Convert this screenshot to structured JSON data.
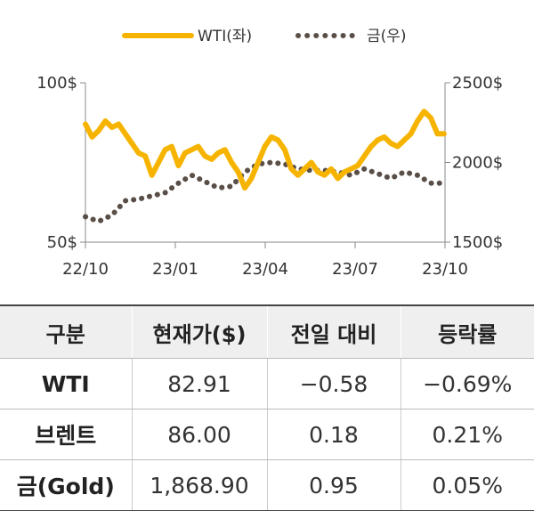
{
  "chart_data": {
    "type": "line",
    "title": "",
    "legend_position": "top",
    "x_ticks": [
      "22/10",
      "23/01",
      "23/04",
      "23/07",
      "23/10"
    ],
    "y_left": {
      "ticks": [
        "100$",
        "50$"
      ],
      "ticks_values": [
        100,
        50
      ],
      "range": [
        50,
        100
      ]
    },
    "y_right": {
      "ticks": [
        "2500$",
        "2000$",
        "1500$"
      ],
      "ticks_values": [
        2500,
        2000,
        1500
      ],
      "range": [
        1500,
        2500
      ]
    },
    "grid": false,
    "series": [
      {
        "name": "WTI(좌)",
        "axis": "left",
        "style": "solid",
        "color": "#F6B400",
        "x": [
          "2022-10-01",
          "2022-10-08",
          "2022-10-15",
          "2022-10-22",
          "2022-10-29",
          "2022-11-05",
          "2022-11-12",
          "2022-11-19",
          "2022-11-26",
          "2022-12-03",
          "2022-12-10",
          "2022-12-17",
          "2022-12-24",
          "2022-12-31",
          "2023-01-07",
          "2023-01-14",
          "2023-01-21",
          "2023-01-28",
          "2023-02-04",
          "2023-02-11",
          "2023-02-18",
          "2023-02-25",
          "2023-03-04",
          "2023-03-11",
          "2023-03-18",
          "2023-03-25",
          "2023-04-01",
          "2023-04-08",
          "2023-04-15",
          "2023-04-22",
          "2023-04-29",
          "2023-05-06",
          "2023-05-13",
          "2023-05-20",
          "2023-05-27",
          "2023-06-03",
          "2023-06-10",
          "2023-06-17",
          "2023-06-24",
          "2023-07-01",
          "2023-07-08",
          "2023-07-15",
          "2023-07-22",
          "2023-07-29",
          "2023-08-05",
          "2023-08-12",
          "2023-08-19",
          "2023-08-26",
          "2023-09-02",
          "2023-09-09",
          "2023-09-16",
          "2023-09-23",
          "2023-09-30",
          "2023-10-07",
          "2023-10-14"
        ],
        "values": [
          87,
          83,
          85,
          88,
          86,
          87,
          84,
          81,
          78,
          77,
          71,
          75,
          79,
          80,
          74,
          78,
          79,
          80,
          77,
          76,
          78,
          79,
          75,
          72,
          67,
          70,
          75,
          80,
          83,
          82,
          79,
          73,
          71,
          73,
          75,
          72,
          71,
          73,
          70,
          72,
          73,
          74,
          77,
          80,
          82,
          83,
          81,
          80,
          82,
          84,
          88,
          91,
          89,
          84,
          84
        ]
      },
      {
        "name": "금(우)",
        "axis": "right",
        "style": "dotted",
        "color": "#5a4f48",
        "x": [
          "2022-10-01",
          "2022-10-15",
          "2022-10-29",
          "2022-11-12",
          "2022-11-26",
          "2022-12-10",
          "2022-12-24",
          "2023-01-07",
          "2023-01-21",
          "2023-02-04",
          "2023-02-18",
          "2023-03-04",
          "2023-03-18",
          "2023-04-01",
          "2023-04-15",
          "2023-04-29",
          "2023-05-13",
          "2023-05-27",
          "2023-06-10",
          "2023-06-24",
          "2023-07-08",
          "2023-07-22",
          "2023-08-05",
          "2023-08-19",
          "2023-09-02",
          "2023-09-16",
          "2023-09-30",
          "2023-10-14"
        ],
        "values": [
          1660,
          1630,
          1670,
          1760,
          1770,
          1790,
          1810,
          1870,
          1920,
          1880,
          1840,
          1850,
          1940,
          1990,
          2000,
          1990,
          1960,
          1950,
          1950,
          1940,
          1920,
          1960,
          1930,
          1900,
          1940,
          1920,
          1870,
          1870
        ]
      }
    ]
  },
  "table": {
    "headers": [
      "구분",
      "현재가($)",
      "전일 대비",
      "등락률"
    ],
    "rows": [
      {
        "name": "WTI",
        "price": "82.91",
        "change": "−0.58",
        "rate": "−0.69%"
      },
      {
        "name": "브렌트",
        "price": "86.00",
        "change": "0.18",
        "rate": "0.21%"
      },
      {
        "name": "금(Gold)",
        "price": "1,868.90",
        "change": "0.95",
        "rate": "0.05%"
      }
    ]
  }
}
